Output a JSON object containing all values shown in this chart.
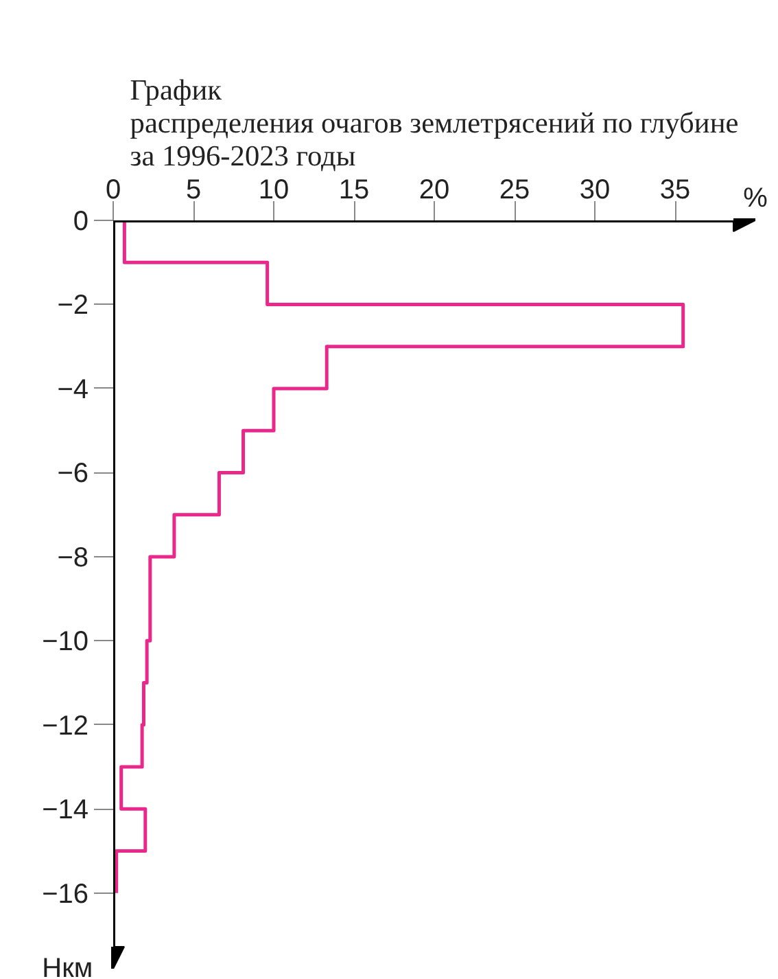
{
  "chart_data": {
    "type": "histogram",
    "orientation": "horizontal",
    "title": "График\nраспределения очагов землетрясений по глубине\nза 1996-2023 годы",
    "xlabel": "%",
    "ylabel": "Нкм",
    "bins": [
      0,
      -1,
      -2,
      -3,
      -4,
      -5,
      -6,
      -7,
      -8,
      -9,
      -10,
      -11,
      -12,
      -13,
      -14,
      -15,
      -16
    ],
    "values": [
      0.7,
      9.6,
      35.5,
      13.3,
      10.0,
      8.1,
      6.6,
      3.8,
      2.3,
      2.3,
      2.1,
      1.9,
      1.8,
      0.5,
      2.0,
      0.2
    ],
    "color": "#e8288a",
    "xlim": [
      0,
      40
    ],
    "ylim": [
      -17.8,
      0
    ],
    "xticks": [
      0,
      5,
      10,
      15,
      20,
      25,
      30,
      35
    ],
    "yticks": [
      0,
      -2,
      -4,
      -6,
      -8,
      -10,
      -12,
      -14,
      -16
    ],
    "grid": false
  }
}
